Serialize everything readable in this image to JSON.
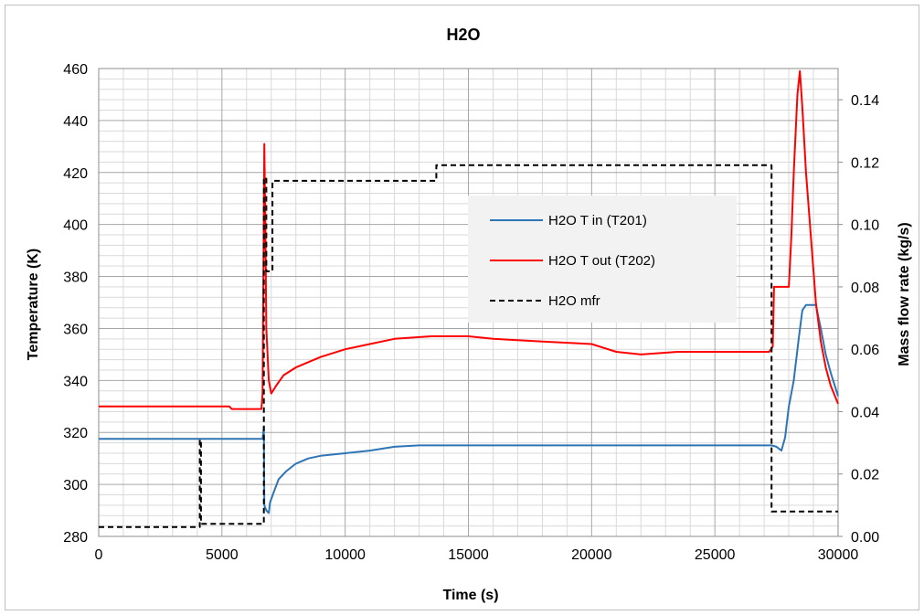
{
  "chart_data": {
    "type": "line",
    "title": "H2O",
    "xlabel": "Time (s)",
    "ylabel": "Temperature (K)",
    "y2label": "Mass flow rate (kg/s)",
    "xlim": [
      0,
      30000
    ],
    "ylim": [
      280,
      460
    ],
    "y2lim": [
      0,
      0.15
    ],
    "x_ticks": [
      "0",
      "5000",
      "10000",
      "15000",
      "20000",
      "25000",
      "30000"
    ],
    "y_ticks": [
      "280",
      "300",
      "320",
      "340",
      "360",
      "380",
      "400",
      "420",
      "440",
      "460"
    ],
    "y2_ticks": [
      "0.00",
      "0.02",
      "0.04",
      "0.06",
      "0.08",
      "0.10",
      "0.12",
      "0.14"
    ],
    "grid": true,
    "legend_position": "center-right",
    "series": [
      {
        "name": "H2O T in (T201)",
        "axis": "left",
        "color": "#2e75b6",
        "dash": "solid",
        "points": [
          [
            0,
            317.5
          ],
          [
            6650,
            317.5
          ],
          [
            6700,
            322
          ],
          [
            6720,
            292
          ],
          [
            6800,
            290
          ],
          [
            6900,
            289
          ],
          [
            6950,
            293
          ],
          [
            7100,
            297
          ],
          [
            7300,
            302
          ],
          [
            7600,
            305
          ],
          [
            8000,
            308
          ],
          [
            8500,
            310
          ],
          [
            9000,
            311
          ],
          [
            10000,
            312
          ],
          [
            11000,
            313
          ],
          [
            12000,
            314.5
          ],
          [
            13000,
            315
          ],
          [
            20000,
            315
          ],
          [
            27300,
            315
          ],
          [
            27500,
            314.5
          ],
          [
            27700,
            313
          ],
          [
            27850,
            318
          ],
          [
            28000,
            330
          ],
          [
            28200,
            340
          ],
          [
            28400,
            356
          ],
          [
            28550,
            367
          ],
          [
            28700,
            369
          ],
          [
            29100,
            369
          ],
          [
            29300,
            360
          ],
          [
            29500,
            350
          ],
          [
            29700,
            343
          ],
          [
            30000,
            334
          ]
        ]
      },
      {
        "name": "H2O T out (T202)",
        "axis": "left",
        "color": "#ff0000",
        "dash": "solid",
        "points": [
          [
            0,
            330
          ],
          [
            5300,
            330
          ],
          [
            5400,
            329
          ],
          [
            6600,
            329
          ],
          [
            6650,
            335
          ],
          [
            6720,
            431
          ],
          [
            6760,
            400
          ],
          [
            6800,
            360
          ],
          [
            6900,
            340
          ],
          [
            7000,
            335
          ],
          [
            7200,
            338
          ],
          [
            7500,
            342
          ],
          [
            8000,
            345
          ],
          [
            9000,
            349
          ],
          [
            10000,
            352
          ],
          [
            11000,
            354
          ],
          [
            12000,
            356
          ],
          [
            13500,
            357
          ],
          [
            15000,
            357
          ],
          [
            16000,
            356
          ],
          [
            18000,
            355
          ],
          [
            20000,
            354
          ],
          [
            21000,
            351
          ],
          [
            22000,
            350
          ],
          [
            23500,
            351
          ],
          [
            27200,
            351
          ],
          [
            27350,
            353
          ],
          [
            27400,
            376
          ],
          [
            28000,
            376
          ],
          [
            28100,
            395
          ],
          [
            28200,
            420
          ],
          [
            28350,
            450
          ],
          [
            28450,
            459
          ],
          [
            28550,
            445
          ],
          [
            28700,
            420
          ],
          [
            28900,
            395
          ],
          [
            29100,
            370
          ],
          [
            29300,
            355
          ],
          [
            29500,
            345
          ],
          [
            29700,
            338
          ],
          [
            30000,
            331
          ]
        ]
      },
      {
        "name": "H2O mfr",
        "axis": "right",
        "color": "#000000",
        "dash": "dashed",
        "points": [
          [
            0,
            0.003
          ],
          [
            4100,
            0.003
          ],
          [
            4100,
            0.031
          ],
          [
            4150,
            0.031
          ],
          [
            4150,
            0.004
          ],
          [
            6700,
            0.004
          ],
          [
            6700,
            0.115
          ],
          [
            6800,
            0.115
          ],
          [
            6800,
            0.085
          ],
          [
            7050,
            0.085
          ],
          [
            7050,
            0.114
          ],
          [
            13700,
            0.114
          ],
          [
            13700,
            0.119
          ],
          [
            27300,
            0.119
          ],
          [
            27300,
            0.008
          ],
          [
            30000,
            0.008
          ]
        ]
      }
    ]
  }
}
